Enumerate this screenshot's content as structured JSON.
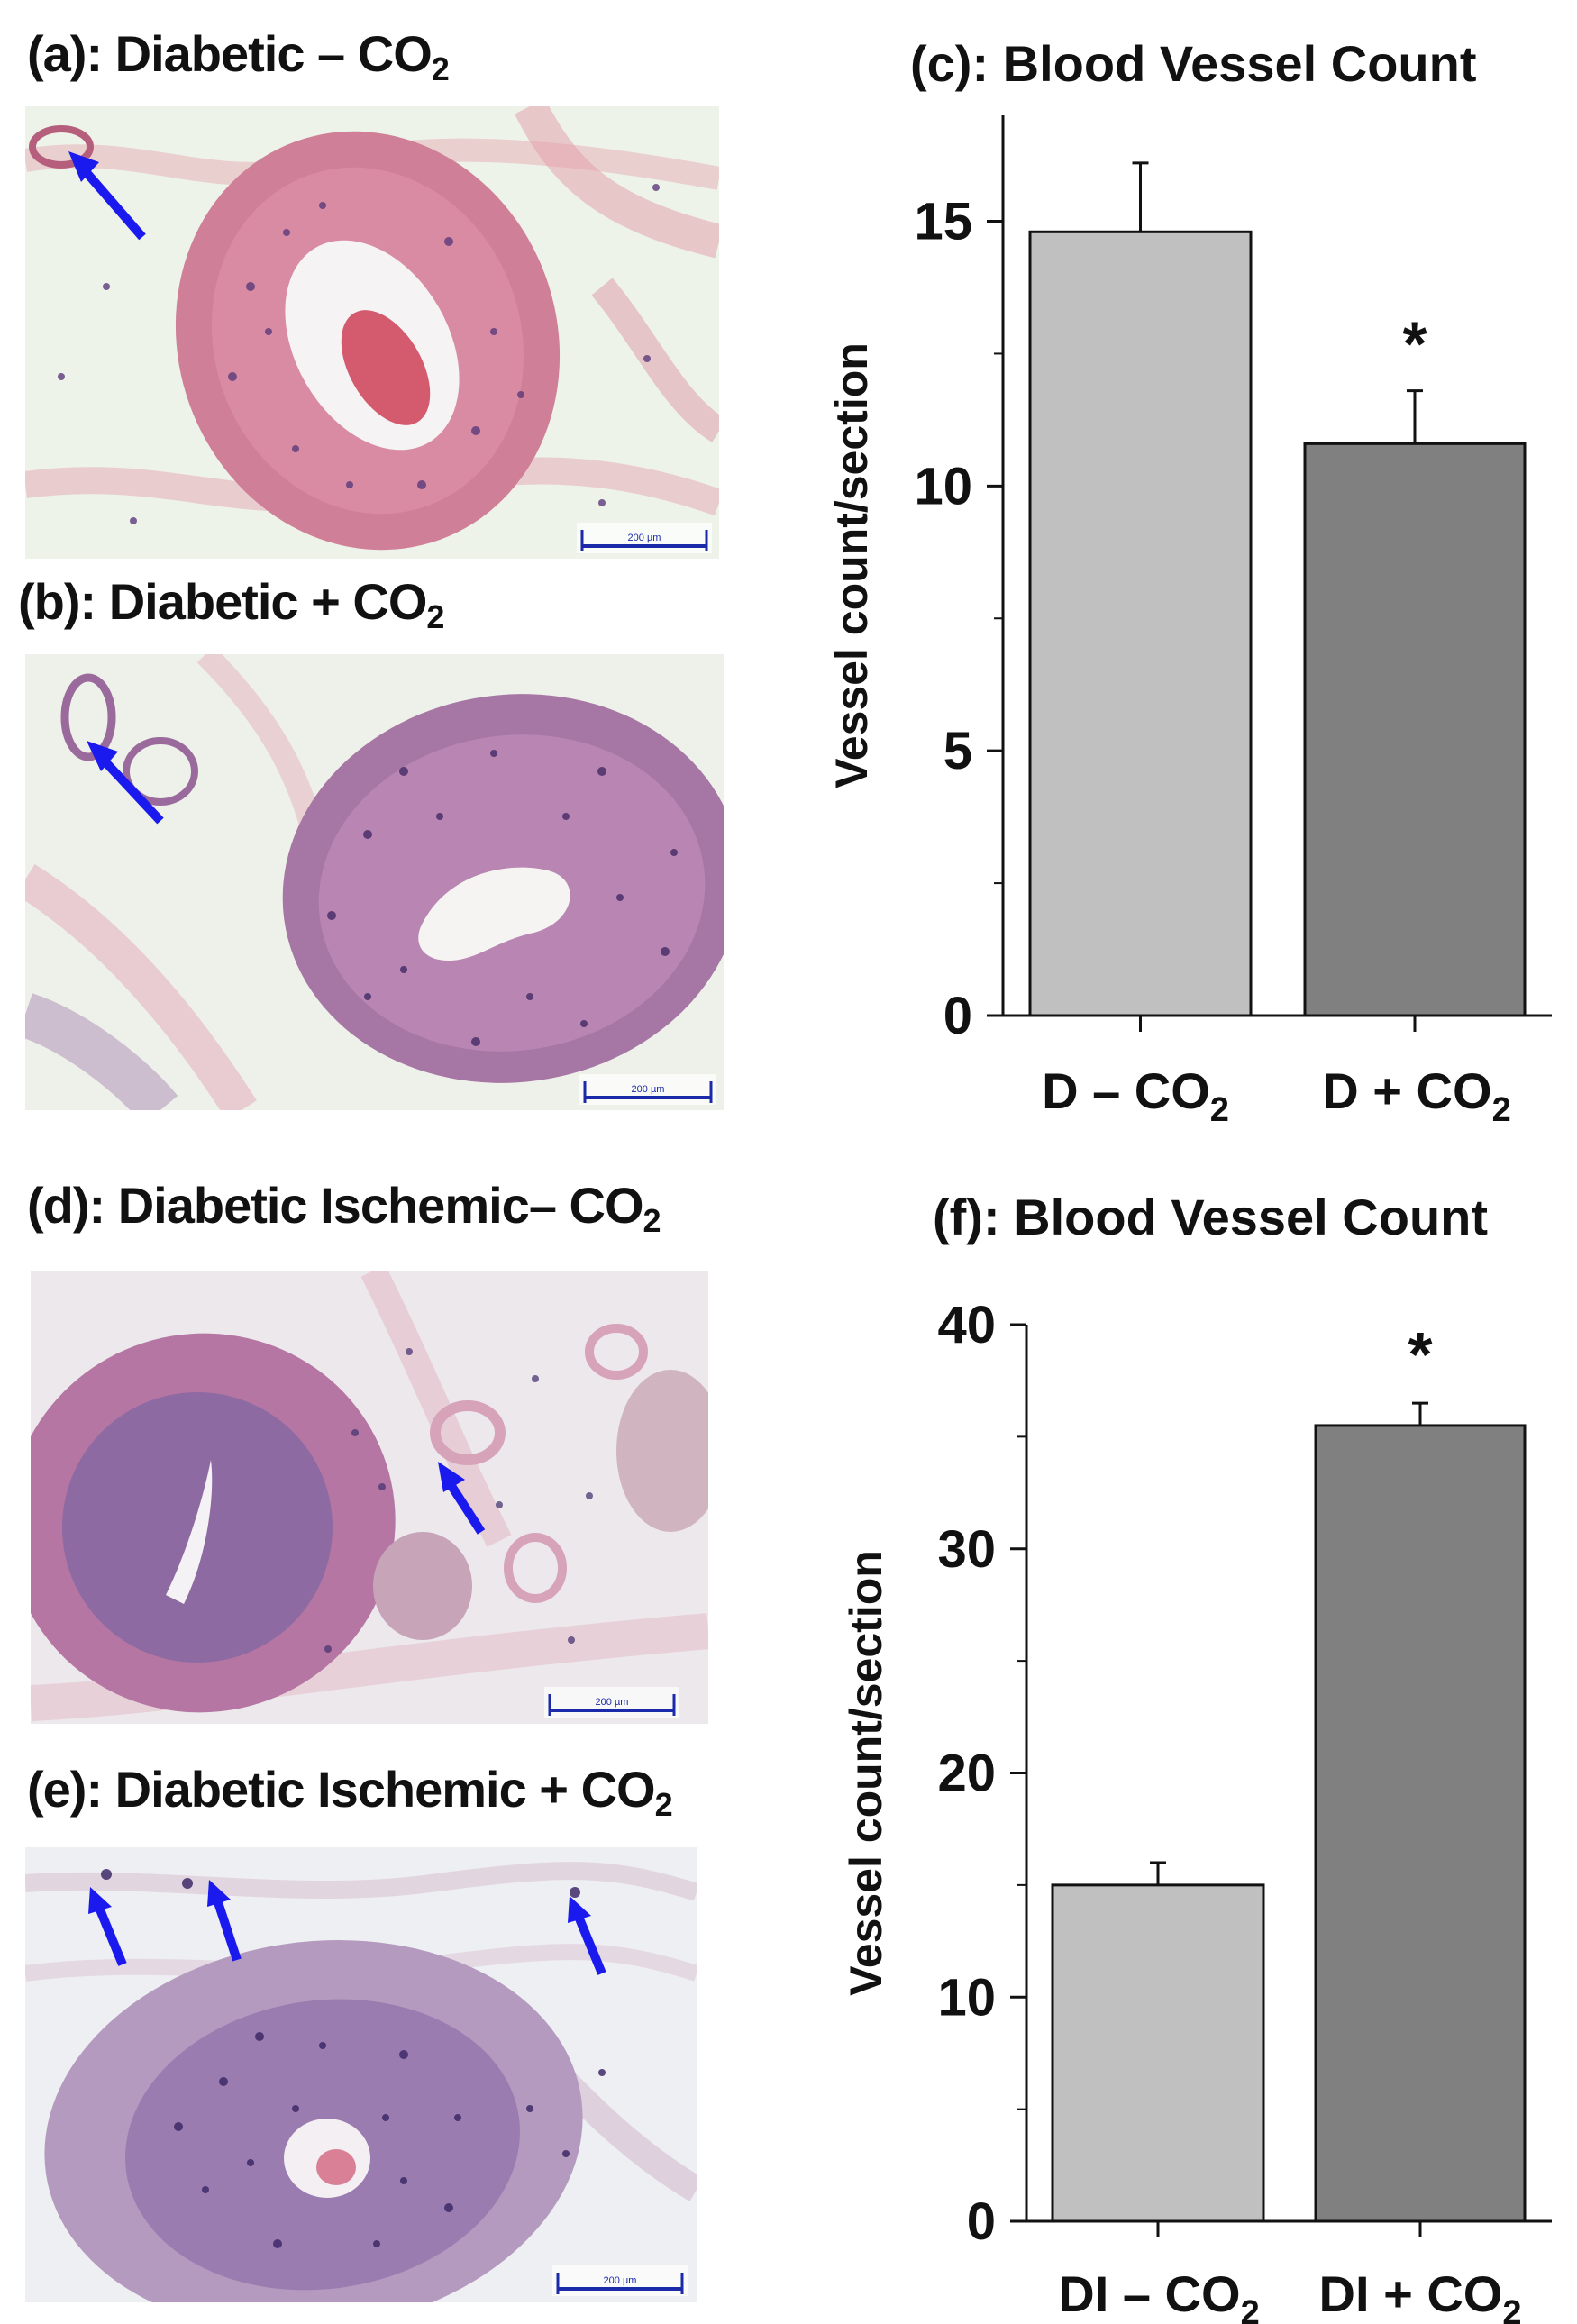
{
  "panels": {
    "a": {
      "title_main": "(a): Diabetic – CO",
      "title_sub": "2",
      "scale_label": "200 µm",
      "arrow_color": "#1a1aee"
    },
    "b": {
      "title_main": "(b): Diabetic + CO",
      "title_sub": "2",
      "scale_label": "200 µm",
      "arrow_color": "#1a1aee"
    },
    "d": {
      "title_main": "(d): Diabetic Ischemic– CO",
      "title_sub": "2",
      "scale_label": "200 µm",
      "arrow_color": "#1a1aee"
    },
    "e": {
      "title_main": "(e): Diabetic Ischemic + CO",
      "title_sub": "2",
      "scale_label": "200 µm",
      "arrow_color": "#1a1aee"
    }
  },
  "chart_data": [
    {
      "id": "c",
      "type": "bar",
      "title": "(c): Blood Vessel Count",
      "ylabel": "Vessel count/section",
      "categories": [
        {
          "main": "D – CO",
          "sub": "2"
        },
        {
          "main": "D + CO",
          "sub": "2"
        }
      ],
      "values": [
        14.8,
        10.8
      ],
      "errors": [
        1.3,
        1.0
      ],
      "significance": [
        "",
        "*"
      ],
      "bar_colors": [
        "#c0c0c0",
        "#808080"
      ],
      "ylim": [
        0,
        17
      ],
      "yticks": [
        0,
        5,
        10,
        15
      ],
      "ytick_labels": [
        "0",
        "5",
        "10",
        "15"
      ]
    },
    {
      "id": "f",
      "type": "bar",
      "title": "(f): Blood Vessel Count",
      "ylabel": "Vessel count/section",
      "categories": [
        {
          "main": "DI – CO",
          "sub": "2"
        },
        {
          "main": "DI + CO",
          "sub": "2"
        }
      ],
      "values": [
        15.0,
        35.5
      ],
      "errors": [
        1.0,
        1.0
      ],
      "significance": [
        "",
        "*"
      ],
      "bar_colors": [
        "#c0c0c0",
        "#808080"
      ],
      "ylim": [
        0,
        40
      ],
      "yticks": [
        0,
        10,
        20,
        30,
        40
      ],
      "ytick_labels": [
        "0",
        "10",
        "20",
        "30",
        "40"
      ]
    }
  ]
}
